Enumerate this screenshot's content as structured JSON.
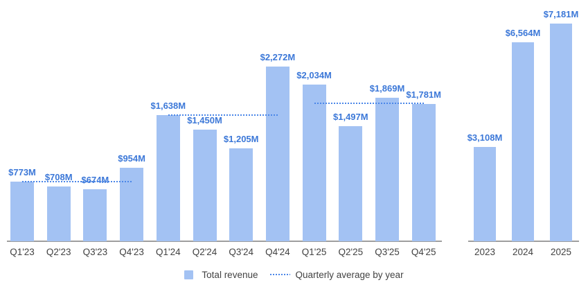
{
  "chart_data": {
    "type": "bar",
    "title": "",
    "legend": [
      {
        "label": "Total revenue",
        "marker": "square"
      },
      {
        "label": "Quarterly average by year",
        "marker": "dotted-line"
      }
    ],
    "colors": {
      "bar_fill": "#a3c2f3",
      "value_label": "#3c78d8",
      "average_line": "#4a86e8",
      "axis_line": "#9e9e9e",
      "axis_text": "#424242"
    },
    "layout_hints": {
      "grid": "off",
      "legend_position": "bottom-center",
      "value_labels": "above-bars"
    },
    "panels": [
      {
        "name": "quarterly-revenue",
        "categories": [
          "Q1'23",
          "Q2'23",
          "Q3'23",
          "Q4'23",
          "Q1'24",
          "Q2'24",
          "Q3'24",
          "Q4'24",
          "Q1'25",
          "Q2'25",
          "Q3'25",
          "Q4'25"
        ],
        "values": [
          773,
          708,
          674,
          954,
          1638,
          1450,
          1205,
          2272,
          2034,
          1497,
          1869,
          1781
        ],
        "labels": [
          "$773M",
          "$708M",
          "$674M",
          "$954M",
          "$1,638M",
          "$1,450M",
          "$1,205M",
          "$2,272M",
          "$2,034M",
          "$1,497M",
          "$1,869M",
          "$1,781M"
        ],
        "average_lines": [
          {
            "year": "2023",
            "value": 777.25,
            "from_index": 0,
            "to_index": 3
          },
          {
            "year": "2024",
            "value": 1641.25,
            "from_index": 4,
            "to_index": 7
          },
          {
            "year": "2025",
            "value": 1795.25,
            "from_index": 8,
            "to_index": 11
          }
        ]
      },
      {
        "name": "annual-revenue",
        "categories": [
          "2023",
          "2024",
          "2025"
        ],
        "values": [
          3108,
          6564,
          7181
        ],
        "labels": [
          "$3,108M",
          "$6,564M",
          "$7,181M"
        ],
        "average_lines": []
      }
    ]
  }
}
